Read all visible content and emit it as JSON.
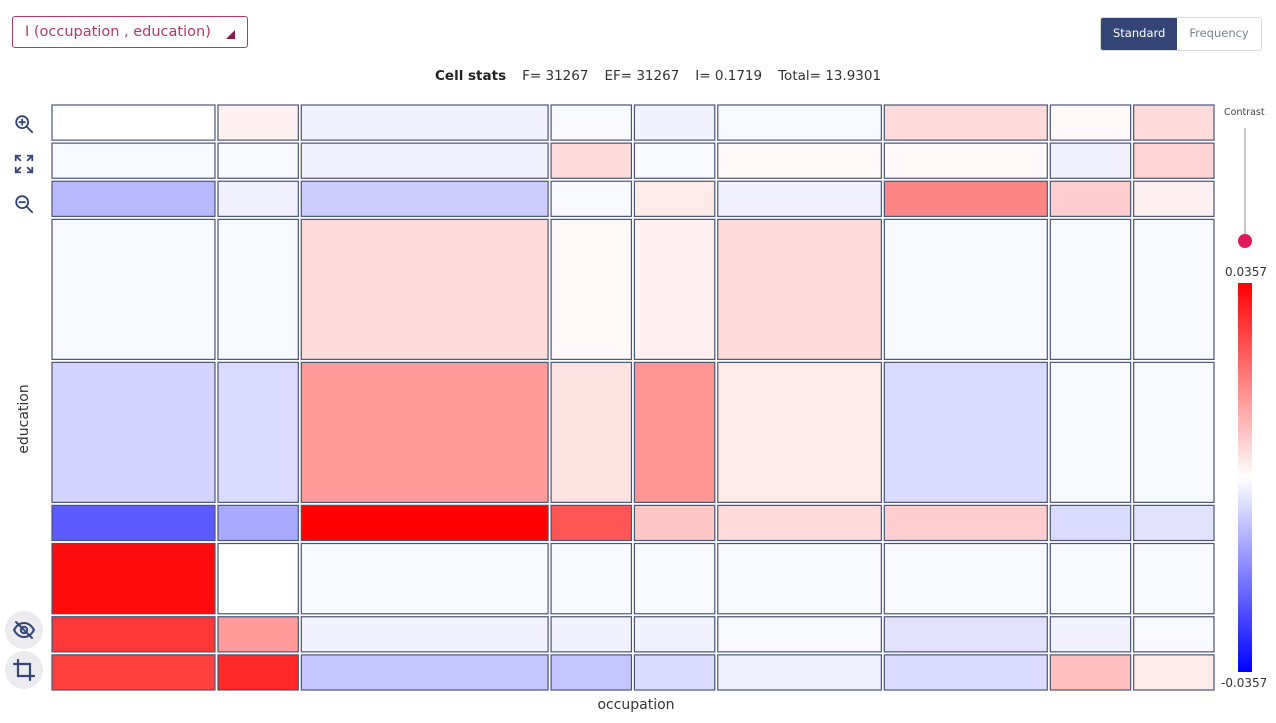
{
  "controls": {
    "measure_select": "I (occupation , education)",
    "mode_standard": "Standard",
    "mode_frequency": "Frequency",
    "contrast_label": "Contrast"
  },
  "stats": {
    "heading": "Cell stats",
    "f": "F= 31267",
    "ef": "EF= 31267",
    "i": "I= 0.1719",
    "total": "Total= 13.9301"
  },
  "toolbar": {
    "zoom_in": "zoom-in-icon",
    "fit": "fit-screen-icon",
    "zoom_out": "zoom-out-icon",
    "hide": "visibility-off-icon",
    "crop": "crop-icon"
  },
  "colors": {
    "positive": "#ff0000",
    "neutral": "#ffffff",
    "negative": "#0000ff",
    "cell_border": "#4a5578",
    "accent": "#e0195a",
    "button_active": "#344676"
  },
  "chart_data": {
    "type": "heatmap",
    "subtype": "mosaic",
    "xlabel": "occupation",
    "ylabel": "education",
    "color_scale": {
      "min": -0.0357,
      "max": 0.0357,
      "min_label": "-0.0357",
      "max_label": "0.0357"
    },
    "column_widths": [
      0.284,
      0.14,
      0.43,
      0.14,
      0.14,
      0.285,
      0.284,
      0.14,
      0.14
    ],
    "row_heights": [
      0.07,
      0.07,
      0.07,
      0.279,
      0.279,
      0.07,
      0.14,
      0.07,
      0.07
    ],
    "values": [
      [
        0.0,
        0.002,
        -0.002,
        -0.001,
        -0.002,
        -0.001,
        0.005,
        0.001,
        0.005
      ],
      [
        -0.001,
        -0.001,
        -0.002,
        0.005,
        -0.001,
        0.001,
        0.001,
        -0.002,
        0.006
      ],
      [
        -0.01,
        -0.002,
        -0.007,
        -0.001,
        0.003,
        -0.002,
        0.017,
        0.007,
        0.002
      ],
      [
        -0.001,
        -0.001,
        0.005,
        0.001,
        0.002,
        0.005,
        -0.001,
        -0.001,
        -0.001
      ],
      [
        -0.006,
        -0.005,
        0.014,
        0.004,
        0.015,
        0.003,
        -0.005,
        -0.001,
        -0.001
      ],
      [
        -0.023,
        -0.012,
        0.0357,
        0.024,
        0.008,
        0.005,
        0.007,
        -0.005,
        -0.004
      ],
      [
        0.034,
        0.0,
        -0.001,
        -0.001,
        -0.001,
        -0.001,
        -0.001,
        -0.001,
        -0.001
      ],
      [
        0.028,
        0.014,
        -0.002,
        -0.002,
        -0.002,
        -0.001,
        -0.004,
        -0.002,
        -0.001
      ],
      [
        0.027,
        0.03,
        -0.008,
        -0.008,
        -0.005,
        -0.002,
        -0.005,
        0.009,
        0.003
      ]
    ]
  }
}
